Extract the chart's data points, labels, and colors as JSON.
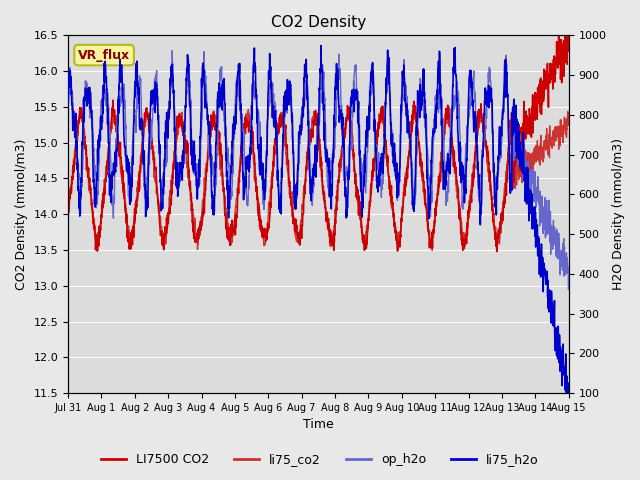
{
  "title": "CO2 Density",
  "xlabel": "Time",
  "ylabel_left": "CO2 Density (mmol/m3)",
  "ylabel_right": "H2O Density (mmol/m3)",
  "ylim_left": [
    11.5,
    16.5
  ],
  "ylim_right": [
    100,
    1000
  ],
  "yticks_left": [
    11.5,
    12.0,
    12.5,
    13.0,
    13.5,
    14.0,
    14.5,
    15.0,
    15.5,
    16.0,
    16.5
  ],
  "yticks_right": [
    100,
    200,
    300,
    400,
    500,
    600,
    700,
    800,
    900,
    1000
  ],
  "fig_bg_color": "#e8e8e8",
  "plot_bg_color": "#dcdcdc",
  "grid_color": "white",
  "annotation_text": "VR_flux",
  "annotation_bg": "#f5f5a0",
  "annotation_border": "#b8b820",
  "annotation_text_color": "#880000",
  "line_colors": {
    "LI7500_CO2": "#cc0000",
    "li75_co2": "#cc3333",
    "op_h2o": "#6666cc",
    "li75_h2o": "#0000cc"
  },
  "legend_entries": [
    "LI7500 CO2",
    "li75_co2",
    "op_h2o",
    "li75_h2o"
  ],
  "n_days": 15,
  "seed": 42
}
